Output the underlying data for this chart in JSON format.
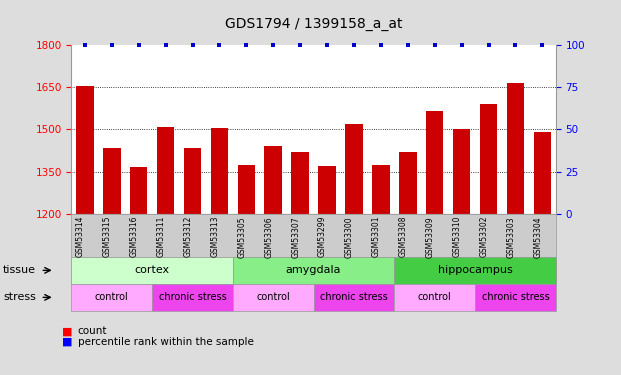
{
  "title": "GDS1794 / 1399158_a_at",
  "samples": [
    "GSM53314",
    "GSM53315",
    "GSM53316",
    "GSM53311",
    "GSM53312",
    "GSM53313",
    "GSM53305",
    "GSM53306",
    "GSM53307",
    "GSM53299",
    "GSM53300",
    "GSM53301",
    "GSM53308",
    "GSM53309",
    "GSM53310",
    "GSM53302",
    "GSM53303",
    "GSM53304"
  ],
  "counts": [
    1655,
    1435,
    1365,
    1510,
    1435,
    1505,
    1375,
    1440,
    1420,
    1370,
    1520,
    1375,
    1420,
    1565,
    1500,
    1590,
    1665,
    1490
  ],
  "bar_color": "#cc0000",
  "dot_color": "#0000cc",
  "ylim_left": [
    1200,
    1800
  ],
  "ylim_right": [
    0,
    100
  ],
  "yticks_left": [
    1200,
    1350,
    1500,
    1650,
    1800
  ],
  "yticks_right": [
    0,
    25,
    50,
    75,
    100
  ],
  "grid_lines": [
    1350,
    1500,
    1650
  ],
  "tissue_groups": [
    {
      "label": "cortex",
      "start": 0,
      "end": 6,
      "color": "#ccffcc"
    },
    {
      "label": "amygdala",
      "start": 6,
      "end": 12,
      "color": "#88ee88"
    },
    {
      "label": "hippocampus",
      "start": 12,
      "end": 18,
      "color": "#44cc44"
    }
  ],
  "stress_groups": [
    {
      "label": "control",
      "start": 0,
      "end": 3,
      "color": "#ffaaff"
    },
    {
      "label": "chronic stress",
      "start": 3,
      "end": 6,
      "color": "#ee44ee"
    },
    {
      "label": "control",
      "start": 6,
      "end": 9,
      "color": "#ffaaff"
    },
    {
      "label": "chronic stress",
      "start": 9,
      "end": 12,
      "color": "#ee44ee"
    },
    {
      "label": "control",
      "start": 12,
      "end": 15,
      "color": "#ffaaff"
    },
    {
      "label": "chronic stress",
      "start": 15,
      "end": 18,
      "color": "#ee44ee"
    }
  ],
  "tissue_label": "tissue",
  "stress_label": "stress",
  "legend_count_label": "count",
  "legend_pct_label": "percentile rank within the sample",
  "xticklabel_bg": "#cccccc",
  "fig_bg": "#dddddd",
  "plot_bg": "#ffffff"
}
